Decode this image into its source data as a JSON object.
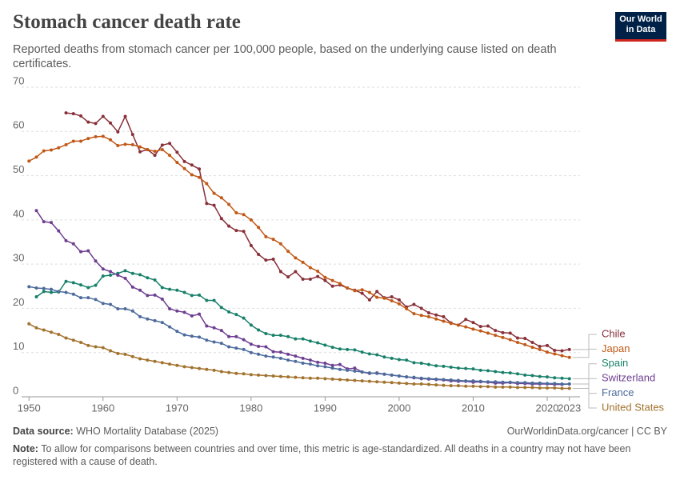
{
  "chart_data": {
    "type": "line",
    "title": "Stomach cancer death rate",
    "subtitle": "Reported deaths from stomach cancer per 100,000 people, based on the underlying cause listed on death certificates.",
    "x": [
      1950,
      1951,
      1952,
      1953,
      1954,
      1955,
      1956,
      1957,
      1958,
      1959,
      1960,
      1961,
      1962,
      1963,
      1964,
      1965,
      1966,
      1967,
      1968,
      1969,
      1970,
      1971,
      1972,
      1973,
      1974,
      1975,
      1976,
      1977,
      1978,
      1979,
      1980,
      1981,
      1982,
      1983,
      1984,
      1985,
      1986,
      1987,
      1988,
      1989,
      1990,
      1991,
      1992,
      1993,
      1994,
      1995,
      1996,
      1997,
      1998,
      1999,
      2000,
      2001,
      2002,
      2003,
      2004,
      2005,
      2006,
      2007,
      2008,
      2009,
      2010,
      2011,
      2012,
      2013,
      2014,
      2015,
      2016,
      2017,
      2018,
      2019,
      2020,
      2021,
      2022,
      2023
    ],
    "xlim": [
      1949,
      2024
    ],
    "xticks": [
      1950,
      1960,
      1970,
      1980,
      1990,
      2000,
      2010,
      2020,
      2023
    ],
    "ylim": [
      0,
      70
    ],
    "yticks": [
      0,
      10,
      20,
      30,
      40,
      50,
      60,
      70
    ],
    "grid": true,
    "series": [
      {
        "name": "Chile",
        "color": "#883039",
        "values": [
          null,
          null,
          null,
          null,
          null,
          64.2,
          64.0,
          63.5,
          62.1,
          61.8,
          63.4,
          61.9,
          59.9,
          63.4,
          59.3,
          55.4,
          55.9,
          54.6,
          56.9,
          57.3,
          55.3,
          53.2,
          52.4,
          51.5,
          43.7,
          43.3,
          40.3,
          38.6,
          37.6,
          37.4,
          34.2,
          32.2,
          30.9,
          31.1,
          28.3,
          27.1,
          28.3,
          26.6,
          26.6,
          27.2,
          26.3,
          25.0,
          25.3,
          24.6,
          24.1,
          23.4,
          21.9,
          23.8,
          22.4,
          22.6,
          21.9,
          20.3,
          20.9,
          20.0,
          19.0,
          18.5,
          18.1,
          16.7,
          16.2,
          17.5,
          16.8,
          15.9,
          16.0,
          15.0,
          14.5,
          14.4,
          13.3,
          13.2,
          12.3,
          11.4,
          11.6,
          10.5,
          10.4,
          10.7
        ]
      },
      {
        "name": "Japan",
        "color": "#c05917",
        "values": [
          53.3,
          54.2,
          55.6,
          55.8,
          56.3,
          57.0,
          57.8,
          57.8,
          58.4,
          58.8,
          58.9,
          58.1,
          56.8,
          57.1,
          57.0,
          56.5,
          55.9,
          55.5,
          55.9,
          54.6,
          53.0,
          51.6,
          50.2,
          49.6,
          48.2,
          46.0,
          45.0,
          43.5,
          41.6,
          41.2,
          40.0,
          38.3,
          36.2,
          35.6,
          34.6,
          32.9,
          31.4,
          30.4,
          29.2,
          28.4,
          27.0,
          26.3,
          25.6,
          24.6,
          24.0,
          24.2,
          23.6,
          22.5,
          22.3,
          21.7,
          21.0,
          19.9,
          18.8,
          18.4,
          18.1,
          17.6,
          17.1,
          16.6,
          16.2,
          15.8,
          15.3,
          14.9,
          14.4,
          13.9,
          13.4,
          12.9,
          12.3,
          11.8,
          11.2,
          10.7,
          10.1,
          9.7,
          9.3,
          8.9
        ]
      },
      {
        "name": "Spain",
        "color": "#18806a",
        "values": [
          null,
          22.6,
          23.8,
          23.6,
          23.7,
          26.1,
          25.8,
          25.3,
          24.7,
          25.2,
          27.3,
          27.5,
          27.9,
          28.5,
          27.9,
          27.6,
          26.9,
          26.4,
          24.7,
          24.3,
          24.1,
          23.6,
          22.9,
          23.0,
          21.8,
          21.8,
          20.2,
          19.2,
          18.6,
          17.8,
          16.2,
          15.1,
          14.3,
          13.9,
          13.9,
          13.6,
          13.1,
          13.1,
          12.6,
          12.2,
          11.7,
          11.2,
          10.8,
          10.7,
          10.6,
          10.1,
          9.7,
          9.5,
          9.0,
          8.7,
          8.4,
          8.3,
          7.7,
          7.6,
          7.3,
          7.0,
          6.9,
          6.7,
          6.5,
          6.4,
          6.3,
          6.0,
          5.9,
          5.7,
          5.5,
          5.4,
          5.2,
          4.9,
          4.8,
          4.6,
          4.5,
          4.3,
          4.2,
          4.1
        ]
      },
      {
        "name": "Switzerland",
        "color": "#6d3e91",
        "values": [
          null,
          42.1,
          39.6,
          39.4,
          37.5,
          35.3,
          34.6,
          32.8,
          33.0,
          30.7,
          28.9,
          28.3,
          27.5,
          26.8,
          24.8,
          24.1,
          22.9,
          23.0,
          22.1,
          19.9,
          19.4,
          19.1,
          18.3,
          18.7,
          16.0,
          15.6,
          15.0,
          13.6,
          13.6,
          12.9,
          11.9,
          11.4,
          11.3,
          10.2,
          10.1,
          9.6,
          9.2,
          8.7,
          8.3,
          7.8,
          7.6,
          7.1,
          7.3,
          6.3,
          6.5,
          5.6,
          5.3,
          5.4,
          5.1,
          4.9,
          4.7,
          4.5,
          4.3,
          4.1,
          4.0,
          3.9,
          3.8,
          3.6,
          3.5,
          3.5,
          3.3,
          3.4,
          3.3,
          3.1,
          3.1,
          3.2,
          3.0,
          3.0,
          2.9,
          2.9,
          2.9,
          2.8,
          2.8,
          2.9
        ]
      },
      {
        "name": "France",
        "color": "#4c6a9c",
        "values": [
          24.9,
          24.6,
          24.5,
          24.3,
          23.8,
          23.6,
          23.2,
          22.4,
          22.4,
          22.0,
          21.1,
          20.9,
          19.9,
          19.9,
          19.4,
          18.1,
          17.6,
          17.2,
          16.8,
          15.8,
          14.8,
          14.0,
          13.7,
          13.5,
          12.8,
          12.4,
          12.1,
          11.3,
          11.0,
          10.7,
          10.0,
          9.6,
          9.2,
          9.0,
          8.7,
          8.3,
          8.0,
          7.6,
          7.4,
          7.0,
          6.8,
          6.5,
          6.2,
          6.0,
          5.8,
          5.6,
          5.4,
          5.3,
          5.1,
          4.9,
          4.7,
          4.5,
          4.4,
          4.2,
          4.1,
          4.0,
          3.9,
          3.8,
          3.7,
          3.6,
          3.6,
          3.5,
          3.4,
          3.4,
          3.3,
          3.3,
          3.2,
          3.2,
          3.1,
          3.1,
          3.0,
          3.0,
          2.9,
          2.9
        ]
      },
      {
        "name": "United States",
        "color": "#a2722d",
        "values": [
          16.5,
          15.6,
          15.1,
          14.6,
          14.1,
          13.3,
          12.8,
          12.3,
          11.6,
          11.3,
          11.1,
          10.4,
          9.8,
          9.6,
          9.1,
          8.6,
          8.3,
          8.0,
          7.7,
          7.4,
          7.1,
          6.8,
          6.6,
          6.4,
          6.2,
          6.0,
          5.7,
          5.5,
          5.3,
          5.2,
          5.0,
          4.9,
          4.8,
          4.7,
          4.6,
          4.5,
          4.4,
          4.3,
          4.2,
          4.2,
          4.1,
          4.0,
          3.9,
          3.8,
          3.7,
          3.6,
          3.5,
          3.4,
          3.3,
          3.2,
          3.1,
          3.0,
          2.9,
          2.9,
          2.8,
          2.7,
          2.6,
          2.5,
          2.5,
          2.4,
          2.4,
          2.3,
          2.3,
          2.2,
          2.2,
          2.2,
          2.1,
          2.1,
          2.1,
          2.0,
          2.0,
          2.0,
          1.9,
          1.9
        ]
      }
    ]
  },
  "logo": [
    "Our World",
    "in Data"
  ],
  "footer": {
    "source_label": "Data source:",
    "source": "WHO Mortality Database (2025)",
    "url": "OurWorldinData.org/cancer | CC BY",
    "note_label": "Note:",
    "note": "To allow for comparisons between countries and over time, this metric is age-standardized. All deaths in a country may not have been registered with a cause of death."
  }
}
